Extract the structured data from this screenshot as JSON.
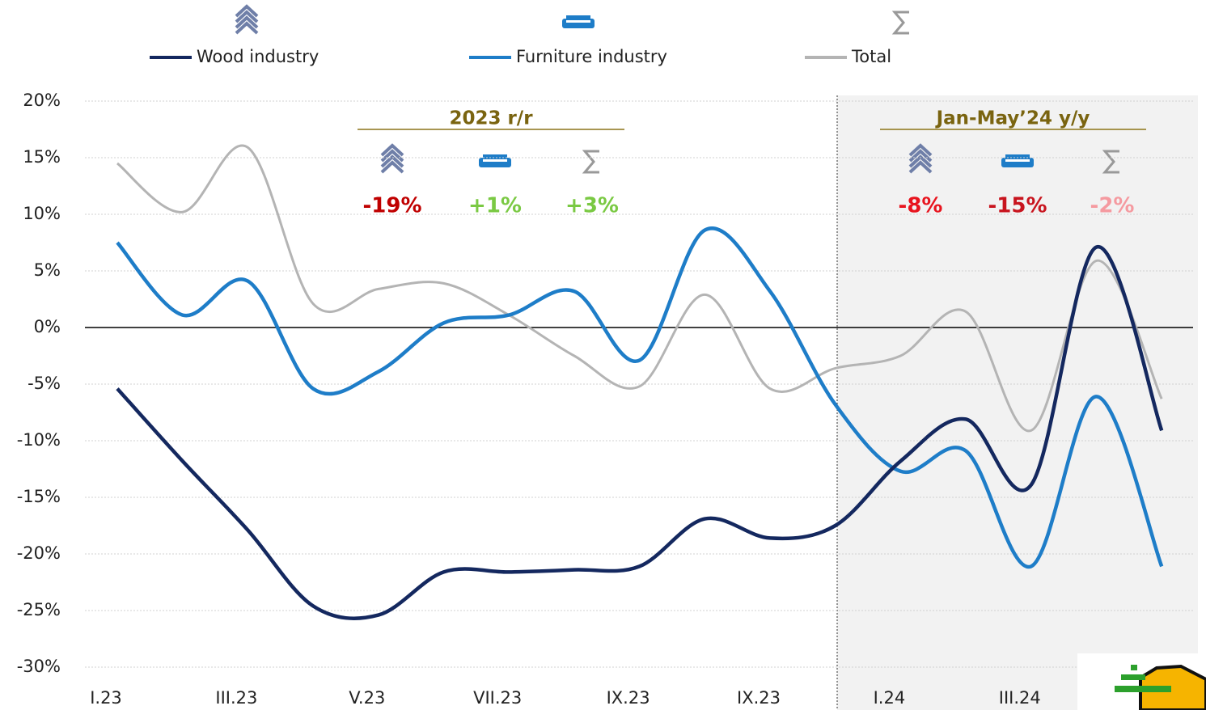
{
  "chart_data": {
    "type": "line",
    "categories": [
      "I.23",
      null,
      "III.23",
      null,
      "V.23",
      null,
      "VII.23",
      null,
      "IX.23",
      null,
      "IX.23",
      null,
      "I.24",
      null,
      "III.24",
      null,
      null
    ],
    "series": [
      {
        "name": "Wood industry",
        "color": "#14285f",
        "values": [
          -5.4,
          -11.8,
          -17.9,
          -24.6,
          -25.4,
          -21.6,
          -21.6,
          -21.4,
          -21.1,
          -16.9,
          -18.6,
          -17.5,
          -11.8,
          -8.1,
          -13.9,
          7.1,
          -9.1
        ]
      },
      {
        "name": "Furniture industry",
        "color": "#1e7dc8",
        "values": [
          7.5,
          1.1,
          4.1,
          -5.4,
          -3.9,
          0.4,
          1.1,
          3.2,
          -2.9,
          8.6,
          3.2,
          -6.8,
          -12.7,
          -10.9,
          -21.1,
          -6.1,
          -21.1
        ]
      },
      {
        "name": "Total",
        "color": "#b4b4b4",
        "values": [
          14.5,
          10.2,
          15.9,
          2.1,
          3.4,
          3.9,
          1.1,
          -2.5,
          -5.2,
          2.9,
          -5.4,
          -3.6,
          -2.5,
          1.4,
          -9.1,
          5.9,
          -6.3
        ]
      }
    ],
    "ylim": [
      -30,
      20
    ],
    "yticks": [
      {
        "value": -30,
        "label": "-30%"
      },
      {
        "value": -25,
        "label": "-25%"
      },
      {
        "value": -20,
        "label": "-20%"
      },
      {
        "value": -15,
        "label": "-15%"
      },
      {
        "value": -10,
        "label": "-10%"
      },
      {
        "value": -5,
        "label": "-5%"
      },
      {
        "value": 0,
        "label": "0%"
      },
      {
        "value": 5,
        "label": "5%"
      },
      {
        "value": 10,
        "label": "10%"
      },
      {
        "value": 15,
        "label": "15%"
      },
      {
        "value": 20,
        "label": "20%"
      }
    ],
    "grid": true,
    "legend": "top",
    "annotations": [
      {
        "title": "2023 r/r",
        "items": [
          {
            "label": "-19%",
            "color": "#c00000"
          },
          {
            "label": "+1%",
            "color": "#7ac943"
          },
          {
            "label": "+3%",
            "color": "#7ac943"
          }
        ]
      },
      {
        "title": "Jan-May’24 y/y",
        "items": [
          {
            "label": "-8%",
            "color": "#e8141e"
          },
          {
            "label": "-15%",
            "color": "#c8141e"
          },
          {
            "label": "-2%",
            "color": "#f59aa0"
          }
        ]
      }
    ]
  }
}
